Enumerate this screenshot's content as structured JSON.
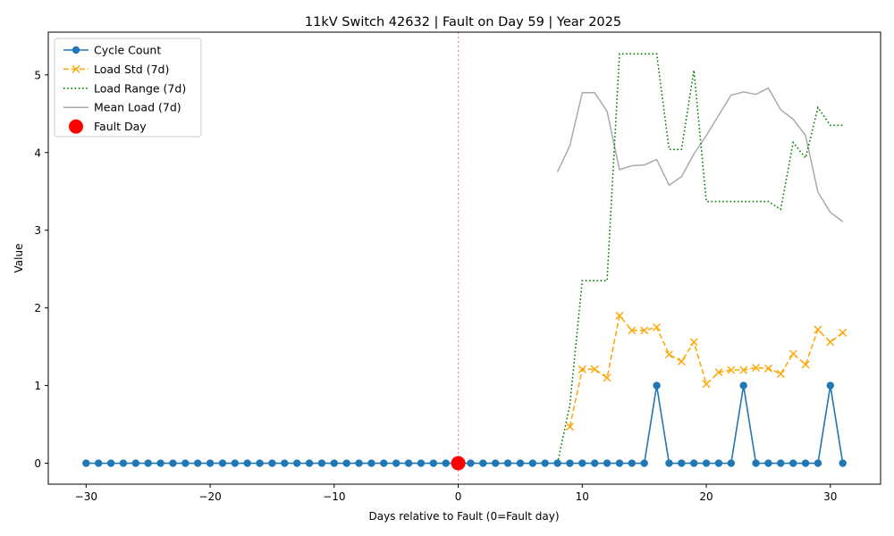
{
  "chart_data": {
    "type": "line",
    "title": "11kV Switch 42632 | Fault on Day 59 | Year 2025",
    "xlabel": "Days relative to Fault (0=Fault day)",
    "ylabel": "Value",
    "xlim": [
      -33.05,
      34.05
    ],
    "ylim": [
      -0.27,
      5.55
    ],
    "x_ticks": [
      -30,
      -20,
      -10,
      0,
      10,
      20,
      30
    ],
    "y_ticks": [
      0,
      1,
      2,
      3,
      4,
      5
    ],
    "grid": false,
    "legend_position": "upper-left",
    "fault_marker_x": 0,
    "series": [
      {
        "name": "Cycle Count",
        "color": "#1f77b4",
        "style": "solid-circle-markers",
        "x": [
          -30,
          -29,
          -28,
          -27,
          -26,
          -25,
          -24,
          -23,
          -22,
          -21,
          -20,
          -19,
          -18,
          -17,
          -16,
          -15,
          -14,
          -13,
          -12,
          -11,
          -10,
          -9,
          -8,
          -7,
          -6,
          -5,
          -4,
          -3,
          -2,
          -1,
          0,
          1,
          2,
          3,
          4,
          5,
          6,
          7,
          8,
          9,
          10,
          11,
          12,
          13,
          14,
          15,
          16,
          17,
          18,
          19,
          20,
          21,
          22,
          23,
          24,
          25,
          26,
          27,
          28,
          29,
          30,
          31
        ],
        "values": [
          0,
          0,
          0,
          0,
          0,
          0,
          0,
          0,
          0,
          0,
          0,
          0,
          0,
          0,
          0,
          0,
          0,
          0,
          0,
          0,
          0,
          0,
          0,
          0,
          0,
          0,
          0,
          0,
          0,
          0,
          0,
          0,
          0,
          0,
          0,
          0,
          0,
          0,
          0,
          0,
          0,
          0,
          0,
          0,
          0,
          0,
          1,
          0,
          0,
          0,
          0,
          0,
          0,
          1,
          0,
          0,
          0,
          0,
          0,
          0,
          1,
          0
        ]
      },
      {
        "name": "Load Std (7d)",
        "color": "#ffa500",
        "style": "dashed-x-markers",
        "x": [
          9,
          10,
          11,
          12,
          13,
          14,
          15,
          16,
          17,
          18,
          19,
          20,
          21,
          22,
          23,
          24,
          25,
          26,
          27,
          28,
          29,
          30,
          31
        ],
        "values": [
          0.47,
          1.21,
          1.21,
          1.1,
          1.9,
          1.71,
          1.71,
          1.75,
          1.4,
          1.31,
          1.56,
          1.02,
          1.17,
          1.2,
          1.2,
          1.23,
          1.22,
          1.15,
          1.41,
          1.27,
          1.72,
          1.56,
          1.68
        ]
      },
      {
        "name": "Load Range (7d)",
        "color": "#008000",
        "style": "dotted",
        "x": [
          8,
          9,
          10,
          11,
          12,
          13,
          14,
          15,
          16,
          17,
          18,
          19,
          20,
          21,
          22,
          23,
          24,
          25,
          26,
          27,
          28,
          29,
          30,
          31
        ],
        "values": [
          0.0,
          0.75,
          2.35,
          2.35,
          2.35,
          5.27,
          5.27,
          5.27,
          5.27,
          4.04,
          4.04,
          5.06,
          3.37,
          3.37,
          3.37,
          3.37,
          3.37,
          3.37,
          3.27,
          4.13,
          3.93,
          4.58,
          4.35,
          4.35
        ]
      },
      {
        "name": "Mean Load (7d)",
        "color": "#aaaaaa",
        "style": "solid",
        "x": [
          8,
          9,
          10,
          11,
          12,
          13,
          14,
          15,
          16,
          17,
          18,
          19,
          20,
          21,
          22,
          23,
          24,
          25,
          26,
          27,
          28,
          29,
          30,
          31
        ],
        "values": [
          3.75,
          4.09,
          4.77,
          4.77,
          4.53,
          3.78,
          3.83,
          3.84,
          3.91,
          3.58,
          3.69,
          3.98,
          4.22,
          4.48,
          4.74,
          4.78,
          4.75,
          4.83,
          4.55,
          4.43,
          4.22,
          3.49,
          3.23,
          3.11
        ]
      },
      {
        "name": "Fault Day",
        "color": "#ff0000",
        "style": "big-dot",
        "x": [
          0
        ],
        "values": [
          0
        ]
      }
    ]
  }
}
